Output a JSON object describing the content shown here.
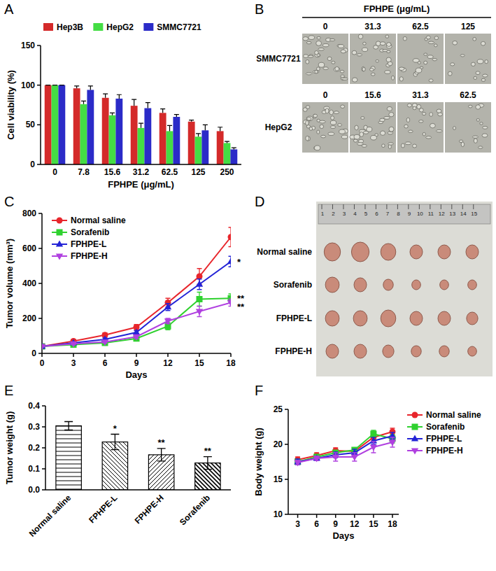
{
  "chart_data": [
    {
      "panel_label": "A",
      "type": "bar",
      "categories": [
        "0",
        "7.8",
        "15.6",
        "31.2",
        "62.5",
        "125",
        "250"
      ],
      "x_label": "FPHPE (μg/mL)",
      "y_label": "Cell viability (%)",
      "ylim": [
        0,
        150
      ],
      "yticks": [
        0,
        50,
        100,
        150
      ],
      "legend": "upper left",
      "series": [
        {
          "name": "Hep3B",
          "color": "#d42a2a",
          "values": [
            100,
            96,
            84,
            74,
            65,
            54,
            42
          ],
          "errors": [
            0,
            3,
            5,
            8,
            5,
            2,
            5
          ]
        },
        {
          "name": "HepG2",
          "color": "#44dd44",
          "values": [
            100,
            76,
            62,
            46,
            42,
            35,
            27
          ],
          "errors": [
            0,
            4,
            3,
            6,
            7,
            4,
            2
          ]
        },
        {
          "name": "SMMC7721",
          "color": "#2b2bc8",
          "values": [
            100,
            94,
            83,
            71,
            60,
            43,
            19
          ],
          "errors": [
            0,
            5,
            5,
            7,
            3,
            7,
            2
          ]
        }
      ]
    },
    {
      "panel_label": "C",
      "type": "line",
      "x": [
        0,
        3,
        6,
        9,
        12,
        15,
        18
      ],
      "xlim": [
        0,
        18
      ],
      "xticks": [
        0,
        3,
        6,
        9,
        12,
        15,
        18
      ],
      "ylim": [
        0,
        800
      ],
      "yticks": [
        0,
        200,
        400,
        600,
        800
      ],
      "x_label": "Days",
      "y_label": "Tumor volume (mm³)",
      "legend": "upper left",
      "series": [
        {
          "name": "Normal saline",
          "color": "#e8262c",
          "marker": "circle",
          "values": [
            40,
            70,
            105,
            150,
            290,
            440,
            665
          ],
          "errors": [
            5,
            8,
            12,
            15,
            25,
            45,
            55
          ]
        },
        {
          "name": "Sorafenib",
          "color": "#2fd12f",
          "marker": "square",
          "values": [
            40,
            50,
            60,
            85,
            155,
            310,
            315
          ],
          "errors": [
            3,
            5,
            6,
            8,
            20,
            40,
            25
          ],
          "significance": "**"
        },
        {
          "name": "FPHPE-L",
          "color": "#2323d6",
          "marker": "triangle",
          "values": [
            40,
            60,
            80,
            120,
            265,
            395,
            525
          ],
          "errors": [
            3,
            5,
            8,
            10,
            20,
            30,
            30
          ],
          "significance": "*"
        },
        {
          "name": "FPHPE-H",
          "color": "#b040e0",
          "marker": "triangle-down",
          "values": [
            40,
            55,
            65,
            95,
            185,
            240,
            290
          ],
          "errors": [
            3,
            5,
            6,
            10,
            15,
            30,
            20
          ],
          "significance": "**"
        }
      ]
    },
    {
      "panel_label": "E",
      "type": "bar",
      "categories": [
        "Normal saline",
        "FPHPE-L",
        "FPHPE-H",
        "Sorafenib"
      ],
      "values": [
        0.305,
        0.228,
        0.167,
        0.128
      ],
      "errors": [
        0.02,
        0.037,
        0.03,
        0.03
      ],
      "significance": [
        null,
        "*",
        "**",
        "**"
      ],
      "color": "#000000",
      "y_label": "Tumor weight (g)",
      "ylim": [
        0,
        0.4
      ],
      "yticks": [
        {
          "value": 0,
          "label": "0.0"
        },
        0.1,
        0.2,
        0.3,
        0.4
      ]
    },
    {
      "panel_label": "F",
      "type": "line",
      "x": [
        3,
        6,
        9,
        12,
        15,
        18
      ],
      "xlim": [
        1.5,
        19
      ],
      "xticks": [
        3,
        6,
        9,
        12,
        15,
        18
      ],
      "ylim": [
        10,
        25
      ],
      "yticks": [
        10,
        15,
        20,
        25
      ],
      "x_label": "Days",
      "y_label": "Body weight (g)",
      "legend": "right",
      "series": [
        {
          "name": "Normal saline",
          "color": "#e8262c",
          "marker": "circle",
          "values": [
            17.8,
            18.4,
            19.1,
            19.0,
            21.0,
            21.8
          ],
          "errors": [
            0.4,
            0.4,
            0.4,
            0.4,
            0.5,
            0.5
          ]
        },
        {
          "name": "Sorafenib",
          "color": "#2fd12f",
          "marker": "square",
          "values": [
            17.5,
            18.2,
            18.8,
            19.2,
            21.5,
            20.8
          ],
          "errors": [
            0.4,
            0.3,
            0.3,
            0.3,
            0.5,
            0.6
          ]
        },
        {
          "name": "FPHPE-L",
          "color": "#2323d6",
          "marker": "triangle",
          "values": [
            17.5,
            18.0,
            18.5,
            18.8,
            20.5,
            21.2
          ],
          "errors": [
            0.4,
            0.3,
            0.4,
            0.5,
            0.5,
            0.5
          ]
        },
        {
          "name": "FPHPE-H",
          "color": "#b040e0",
          "marker": "triangle-down",
          "values": [
            17.4,
            18.0,
            18.2,
            18.2,
            19.6,
            20.3
          ],
          "errors": [
            0.3,
            0.3,
            0.6,
            0.6,
            0.8,
            0.7
          ]
        }
      ]
    }
  ],
  "image_panels": [
    {
      "panel_label": "B",
      "title": "FPHPE (μg/mL)",
      "rows": [
        {
          "label": "SMMC7721",
          "columns": [
            "0",
            "31.3",
            "62.5",
            "125"
          ]
        },
        {
          "label": "HepG2",
          "columns": [
            "0",
            "15.6",
            "31.3",
            "62.5"
          ]
        }
      ]
    },
    {
      "panel_label": "D",
      "ruler_labels": [
        1,
        2,
        3,
        4,
        5,
        6,
        7,
        8,
        9,
        10,
        11,
        12,
        13,
        14,
        15
      ],
      "rows": [
        "Normal saline",
        "Sorafenib",
        "FPHPE-L",
        "FPHPE-H"
      ]
    }
  ]
}
